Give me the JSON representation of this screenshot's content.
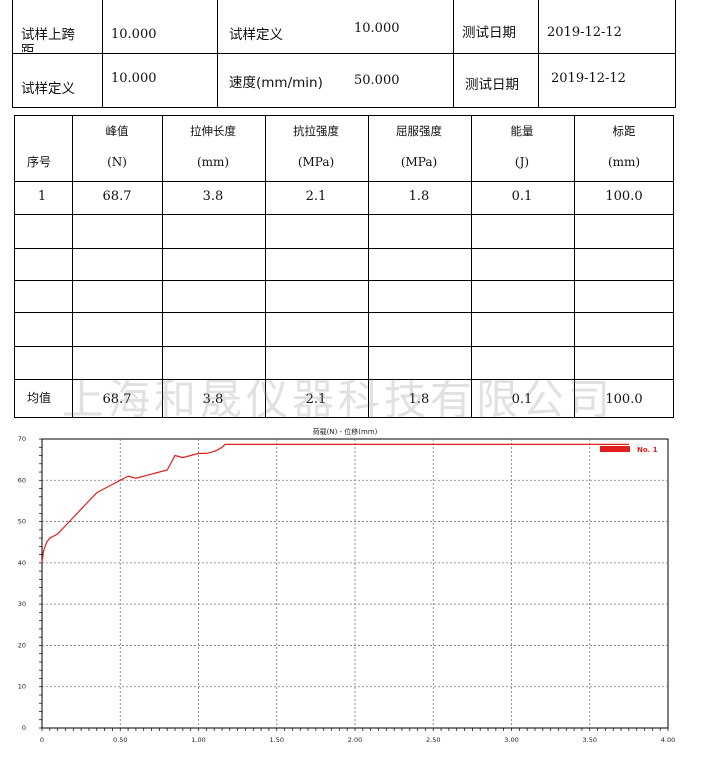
{
  "info": {
    "rows": [
      {
        "label1": "试样上跨",
        "label1_cut": "距",
        "val1": "10.000",
        "label2": "试样定义",
        "val2": "10.000",
        "label3": "测试日期",
        "val3": "2019-12-12"
      },
      {
        "label1": "试样定义",
        "val1": "10.000",
        "label2": "速度(mm/min)",
        "val2": "50.000",
        "label3": "测试日期",
        "val3": "2019-12-12"
      }
    ]
  },
  "results": {
    "seq_header": "序号",
    "columns": [
      {
        "name": "峰值",
        "unit": "(N)"
      },
      {
        "name": "拉伸长度",
        "unit": "(mm)"
      },
      {
        "name": "抗拉强度",
        "unit": "(MPa)"
      },
      {
        "name": "屈服强度",
        "unit": "(MPa)"
      },
      {
        "name": "能量",
        "unit": "(J)"
      },
      {
        "name": "标距",
        "unit": "(mm)"
      }
    ],
    "rows": [
      {
        "seq": "1",
        "values": [
          "68.7",
          "3.8",
          "2.1",
          "1.8",
          "0.1",
          "100.0"
        ]
      }
    ],
    "mean_label": "均值",
    "mean_values": [
      "68.7",
      "3.8",
      "2.1",
      "1.8",
      "0.1",
      "100.0"
    ]
  },
  "watermark": "上海和晟仪器科技有限公司",
  "chart_data": {
    "type": "line",
    "title": "荷载(N) - 位移(mm)",
    "xlabel": "",
    "ylabel": "",
    "xlim": [
      0,
      4.0
    ],
    "ylim": [
      0,
      70
    ],
    "xticks": [
      "0",
      "0.50",
      "1.00",
      "1.50",
      "2.00",
      "2.50",
      "3.00",
      "3.50",
      "4.00"
    ],
    "yticks": [
      "0",
      "10",
      "20",
      "30",
      "40",
      "50",
      "60",
      "70"
    ],
    "grid": true,
    "legend_position": "top-right",
    "series": [
      {
        "name": "No. 1",
        "color": "#e0201c",
        "x": [
          0,
          0.01,
          0.03,
          0.05,
          0.1,
          0.15,
          0.2,
          0.25,
          0.3,
          0.35,
          0.4,
          0.45,
          0.5,
          0.55,
          0.6,
          0.65,
          0.7,
          0.75,
          0.8,
          0.85,
          0.9,
          0.95,
          1.0,
          1.05,
          1.1,
          1.13,
          1.15,
          1.17,
          1.5,
          2.0,
          2.5,
          3.0,
          3.5,
          3.75
        ],
        "y": [
          40,
          43,
          45,
          46,
          47,
          49,
          51,
          53,
          55,
          57,
          58,
          59,
          60,
          61,
          60.5,
          61,
          61.5,
          62,
          62.5,
          66,
          65.5,
          66,
          66.5,
          66.5,
          67,
          67.5,
          68,
          68.7,
          68.7,
          68.7,
          68.7,
          68.7,
          68.7,
          68.7
        ]
      }
    ]
  }
}
